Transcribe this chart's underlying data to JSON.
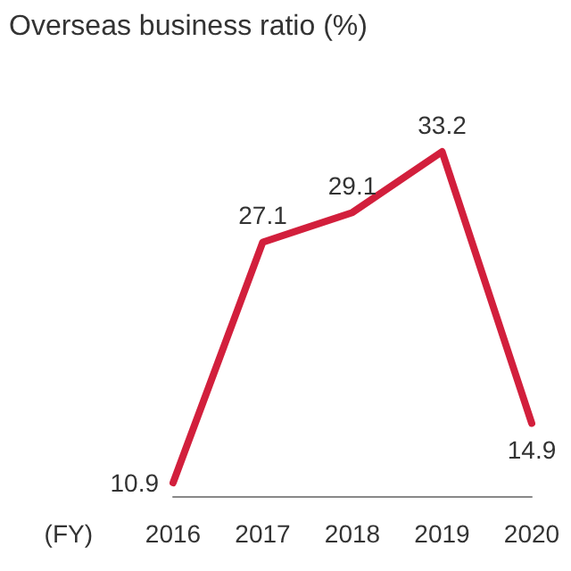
{
  "chart_data": {
    "type": "line",
    "title": "Overseas business ratio (%)",
    "xlabel": "(FY)",
    "categories": [
      "2016",
      "2017",
      "2018",
      "2019",
      "2020"
    ],
    "series": [
      {
        "color": "#d21f3c",
        "values": [
          10.9,
          27.1,
          29.1,
          33.2,
          14.9
        ]
      }
    ],
    "data_labels": true,
    "marker": "none",
    "grid": false
  }
}
